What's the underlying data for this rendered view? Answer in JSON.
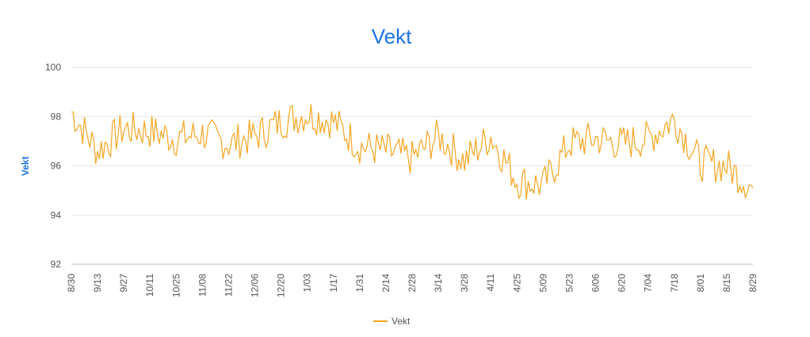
{
  "chart_data": {
    "type": "line",
    "title": "Vekt",
    "xlabel": "",
    "ylabel": "Vekt",
    "ylim": [
      92,
      100
    ],
    "y_ticks": [
      "100",
      "98",
      "96",
      "94",
      "92"
    ],
    "x_tick_labels": [
      "8/30",
      "9/13",
      "9/27",
      "10/11",
      "10/25",
      "11/08",
      "11/22",
      "12/06",
      "12/20",
      "1/03",
      "1/17",
      "1/31",
      "2/14",
      "2/28",
      "3/14",
      "3/28",
      "4/11",
      "4/25",
      "5/09",
      "5/23",
      "6/06",
      "6/20",
      "7/04",
      "7/18",
      "8/01",
      "8/15",
      "8/29"
    ],
    "legend_position": "bottom",
    "grid": true,
    "series": [
      {
        "name": "Vekt",
        "color": "#f5a623",
        "x": [
          "8/30",
          "9/13",
          "9/27",
          "10/11",
          "10/25",
          "11/08",
          "11/22",
          "12/06",
          "12/20",
          "1/03",
          "1/17",
          "1/31",
          "2/14",
          "2/28",
          "3/14",
          "3/28",
          "4/11",
          "4/25",
          "5/09",
          "5/23",
          "6/06",
          "6/20",
          "7/04",
          "7/18",
          "8/01",
          "8/15",
          "8/29"
        ],
        "values": [
          98.2,
          96.6,
          97.5,
          97.4,
          97.1,
          97.3,
          96.9,
          97.2,
          97.8,
          98.1,
          97.8,
          96.8,
          96.6,
          96.3,
          97.2,
          96.2,
          97.2,
          95.4,
          95.2,
          96.9,
          97.1,
          96.9,
          97.1,
          97.9,
          96.1,
          96.0,
          95.1
        ]
      }
    ]
  }
}
